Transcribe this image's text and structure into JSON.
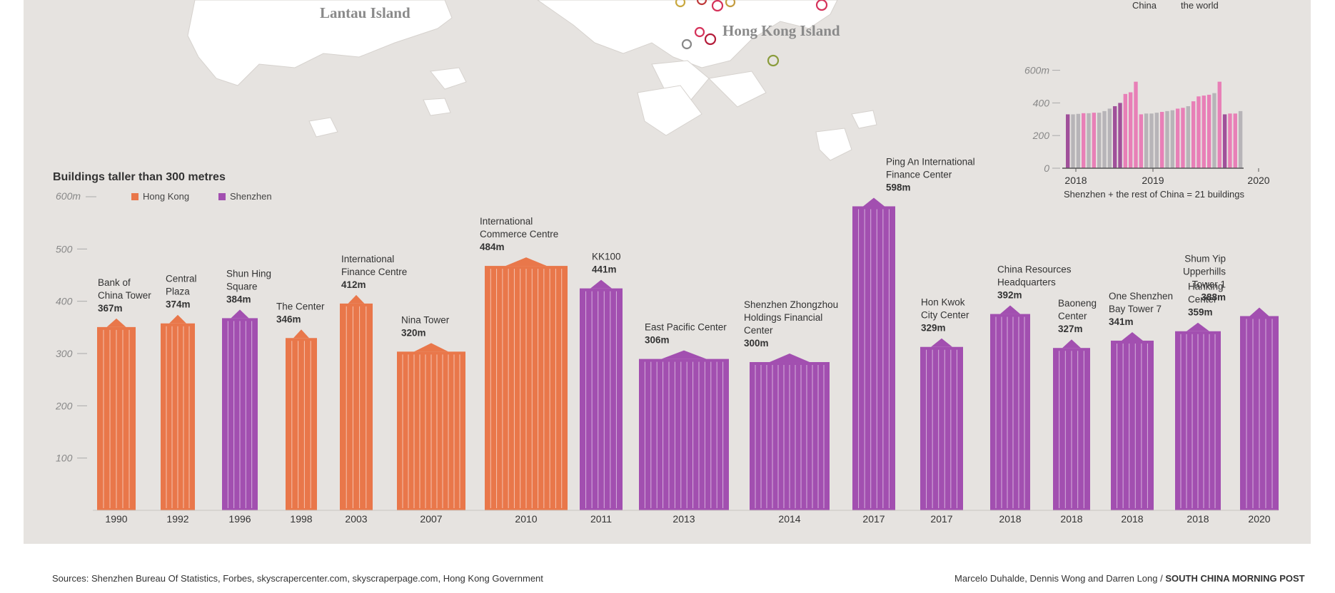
{
  "map": {
    "labels": [
      "Lantau Island",
      "Hong Kong Island"
    ]
  },
  "inset": {
    "header_labels": [
      "China",
      "the world"
    ],
    "y_ticks": [
      0,
      200,
      400,
      600
    ],
    "y_top_label": "600m",
    "x_labels": [
      "2018",
      "2019",
      "2020"
    ],
    "caption": "Shenzhen + the rest of China = 21 buildings",
    "bars": [
      {
        "value": 330,
        "color": "#a0509a"
      },
      {
        "value": 330,
        "color": "#b7b4b8"
      },
      {
        "value": 333,
        "color": "#b7b4b8"
      },
      {
        "value": 337,
        "color": "#e87fb7"
      },
      {
        "value": 337,
        "color": "#b7b4b8"
      },
      {
        "value": 340,
        "color": "#e87fb7"
      },
      {
        "value": 340,
        "color": "#b7b4b8"
      },
      {
        "value": 350,
        "color": "#b7b4b8"
      },
      {
        "value": 365,
        "color": "#b7b4b8"
      },
      {
        "value": 380,
        "color": "#a0509a"
      },
      {
        "value": 400,
        "color": "#a0509a"
      },
      {
        "value": 455,
        "color": "#e87fb7"
      },
      {
        "value": 465,
        "color": "#e87fb7"
      },
      {
        "value": 530,
        "color": "#e87fb7"
      },
      {
        "value": 330,
        "color": "#e87fb7"
      },
      {
        "value": 335,
        "color": "#b7b4b8"
      },
      {
        "value": 335,
        "color": "#b7b4b8"
      },
      {
        "value": 340,
        "color": "#b7b4b8"
      },
      {
        "value": 345,
        "color": "#e87fb7"
      },
      {
        "value": 350,
        "color": "#b7b4b8"
      },
      {
        "value": 355,
        "color": "#b7b4b8"
      },
      {
        "value": 365,
        "color": "#e87fb7"
      },
      {
        "value": 370,
        "color": "#e87fb7"
      },
      {
        "value": 380,
        "color": "#b7b4b8"
      },
      {
        "value": 410,
        "color": "#e87fb7"
      },
      {
        "value": 440,
        "color": "#e87fb7"
      },
      {
        "value": 445,
        "color": "#e87fb7"
      },
      {
        "value": 450,
        "color": "#e87fb7"
      },
      {
        "value": 460,
        "color": "#b7b4b8"
      },
      {
        "value": 530,
        "color": "#e87fb7"
      },
      {
        "value": 330,
        "color": "#a0509a"
      },
      {
        "value": 335,
        "color": "#e87fb7"
      },
      {
        "value": 335,
        "color": "#e87fb7"
      },
      {
        "value": 350,
        "color": "#b7b4b8"
      }
    ]
  },
  "main": {
    "title": "Buildings taller than 300 metres",
    "y_top_label": "600m",
    "legend": [
      {
        "label": "Hong Kong",
        "color": "#e9774a"
      },
      {
        "label": "Shenzhen",
        "color": "#a24fb0"
      }
    ],
    "y_ticks": [
      100,
      200,
      300,
      400,
      500
    ]
  },
  "chart_data": {
    "type": "bar",
    "title": "Buildings taller than 300 metres",
    "ylim": [
      0,
      600
    ],
    "series": [
      {
        "name": "Hong Kong"
      },
      {
        "name": "Shenzhen"
      }
    ],
    "buildings": [
      {
        "name_lines": [
          "Bank of",
          "China Tower"
        ],
        "height_label": "367m",
        "height": 367,
        "year": "1990",
        "city": "Hong Kong"
      },
      {
        "name_lines": [
          "Central",
          "Plaza"
        ],
        "height_label": "374m",
        "height": 374,
        "year": "1992",
        "city": "Hong Kong"
      },
      {
        "name_lines": [
          "Shun Hing",
          "Square"
        ],
        "height_label": "384m",
        "height": 384,
        "year": "1996",
        "city": "Shenzhen"
      },
      {
        "name_lines": [
          "The Center"
        ],
        "height_label": "346m",
        "height": 346,
        "year": "1998",
        "city": "Hong Kong"
      },
      {
        "name_lines": [
          "International",
          "Finance Centre"
        ],
        "height_label": "412m",
        "height": 412,
        "year": "2003",
        "city": "Hong Kong"
      },
      {
        "name_lines": [
          "Nina Tower"
        ],
        "height_label": "320m",
        "height": 320,
        "year": "2007",
        "city": "Hong Kong"
      },
      {
        "name_lines": [
          "International",
          "Commerce Centre"
        ],
        "height_label": "484m",
        "height": 484,
        "year": "2010",
        "city": "Hong Kong"
      },
      {
        "name_lines": [
          "KK100"
        ],
        "height_label": "441m",
        "height": 441,
        "year": "2011",
        "city": "Shenzhen"
      },
      {
        "name_lines": [
          "East Pacific Center"
        ],
        "height_label": "306m",
        "height": 306,
        "year": "2013",
        "city": "Shenzhen"
      },
      {
        "name_lines": [
          "Shenzhen Zhongzhou",
          "Holdings Financial",
          "Center"
        ],
        "height_label": "300m",
        "height": 300,
        "year": "2014",
        "city": "Shenzhen"
      },
      {
        "name_lines": [
          "Ping An International",
          "Finance Center"
        ],
        "height_label": "598m",
        "height": 598,
        "year": "2017",
        "city": "Shenzhen"
      },
      {
        "name_lines": [
          "Hon Kwok",
          "City Center"
        ],
        "height_label": "329m",
        "height": 329,
        "year": "2017",
        "city": "Shenzhen"
      },
      {
        "name_lines": [
          "China Resources",
          "Headquarters"
        ],
        "height_label": "392m",
        "height": 392,
        "year": "2018",
        "city": "Shenzhen"
      },
      {
        "name_lines": [
          "Baoneng",
          "Center"
        ],
        "height_label": "327m",
        "height": 327,
        "year": "2018",
        "city": "Shenzhen"
      },
      {
        "name_lines": [
          "One Shenzhen",
          "Bay Tower 7"
        ],
        "height_label": "341m",
        "height": 341,
        "year": "2018",
        "city": "Shenzhen"
      },
      {
        "name_lines": [
          "Hanking",
          "Center"
        ],
        "height_label": "359m",
        "height": 359,
        "year": "2018",
        "city": "Shenzhen"
      },
      {
        "name_lines": [
          "Shum Yip",
          "Upperhills",
          "Tower 1"
        ],
        "height_label": "388m",
        "height": 388,
        "year": "2020",
        "city": "Shenzhen"
      }
    ]
  },
  "footer": {
    "sources_prefix": "Sources:",
    "sources_text": "Shenzhen Bureau Of Statistics, Forbes, skyscrapercenter.com, skyscraperpage.com, Hong Kong Government",
    "credit": "Marcelo Duhalde, Dennis Wong and Darren Long /",
    "publication": "SOUTH CHINA MORNING POST"
  }
}
